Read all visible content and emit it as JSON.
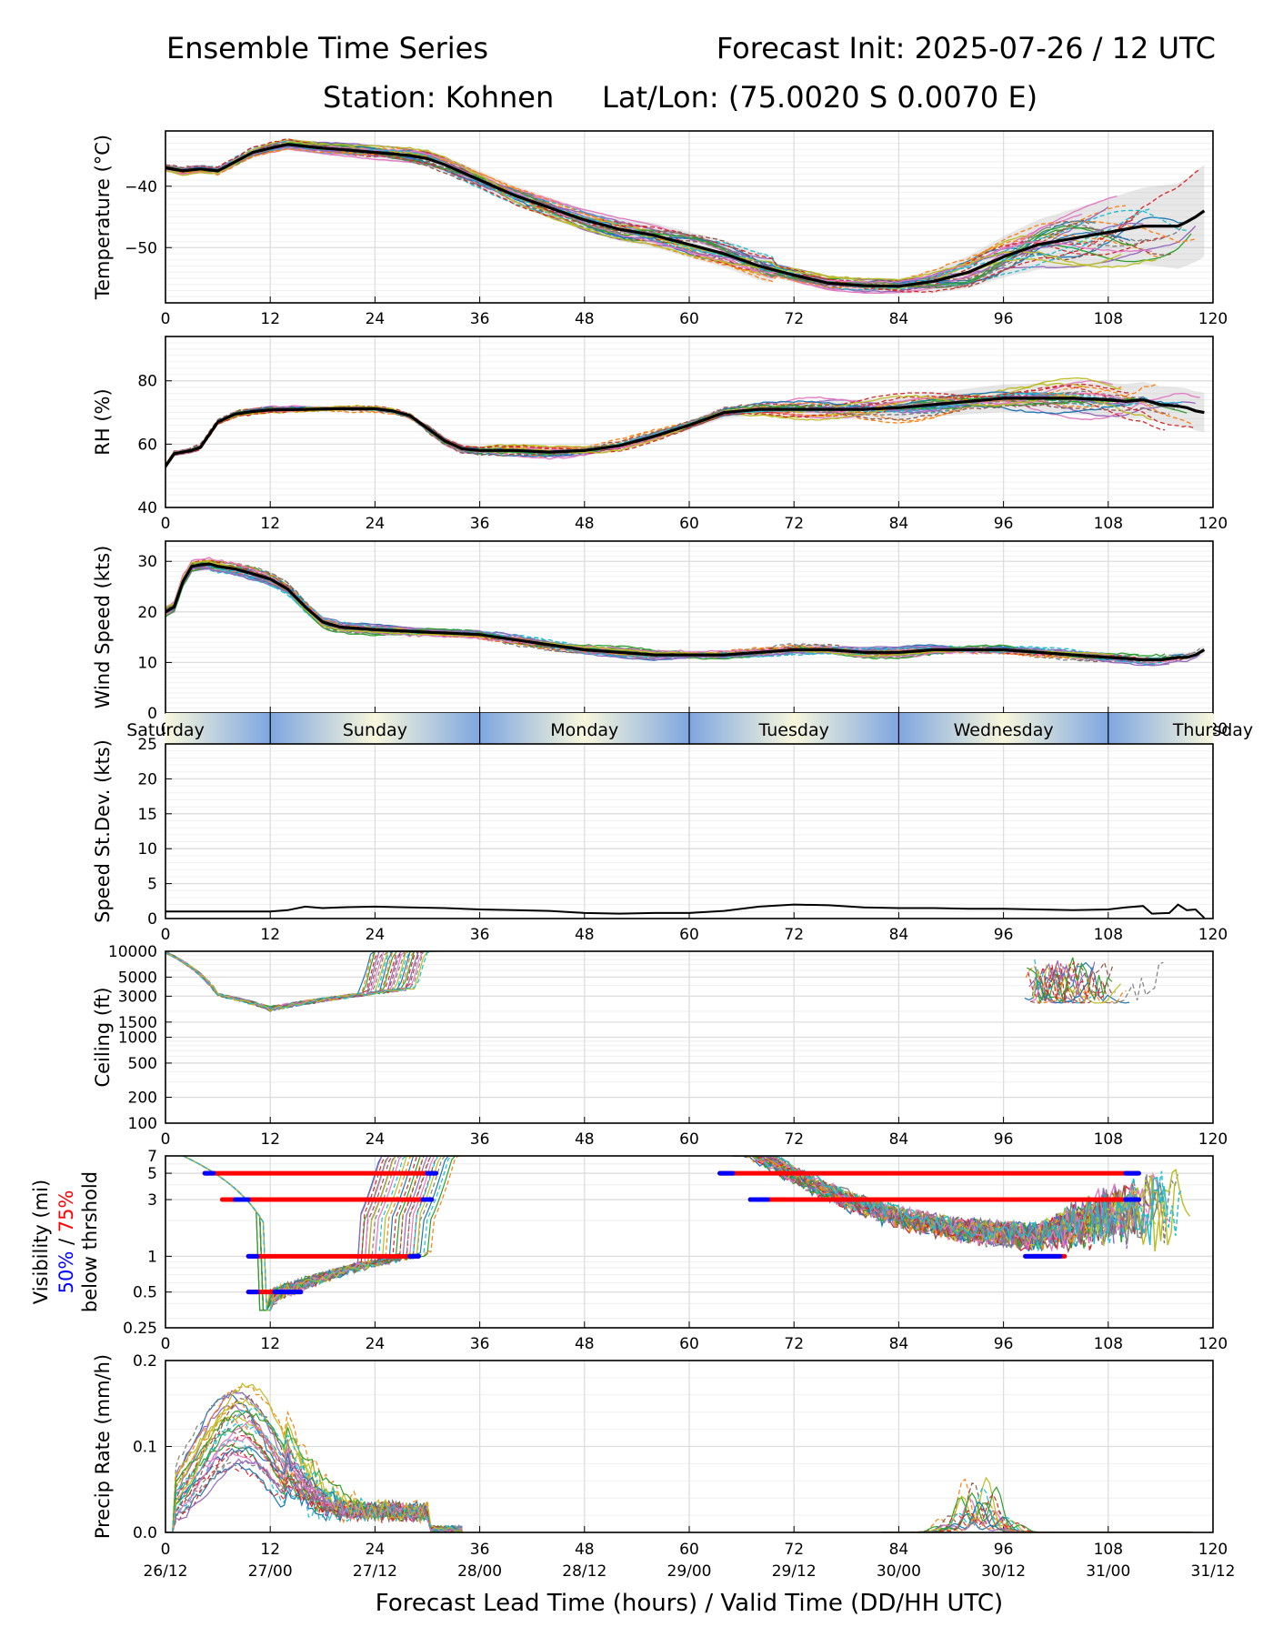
{
  "header": {
    "title_left": "Ensemble Time Series",
    "title_right": "Forecast Init: 2025-07-26 / 12 UTC",
    "station": "Station: Kohnen",
    "latlon": "Lat/Lon: (75.0020 S 0.0070 E)"
  },
  "xaxis": {
    "label": "Forecast Lead Time (hours) / Valid Time (DD/HH UTC)",
    "range": [
      0,
      120
    ],
    "ticks": [
      0,
      12,
      24,
      36,
      48,
      60,
      72,
      84,
      96,
      108,
      120
    ],
    "valid_labels": [
      "26/12",
      "27/00",
      "27/12",
      "28/00",
      "28/12",
      "29/00",
      "29/12",
      "30/00",
      "30/12",
      "31/00",
      "31/12"
    ]
  },
  "day_band": {
    "days": [
      "Saturday",
      "Sunday",
      "Monday",
      "Tuesday",
      "Wednesday",
      "Thursday"
    ],
    "boundaries": [
      12,
      36,
      60,
      84,
      108
    ]
  },
  "colors": {
    "members": [
      "#1f77b4",
      "#ff7f0e",
      "#2ca02c",
      "#d62728",
      "#9467bd",
      "#8c564b",
      "#e377c2",
      "#7f7f7f",
      "#bcbd22",
      "#17becf"
    ],
    "mean": "#000000",
    "spread": "#bbbbbb",
    "band_blue": "#7ea6e0",
    "band_cream": "#f8f7dc",
    "thr50": "#0000ff",
    "thr75": "#ff0000"
  },
  "chart_data": [
    {
      "id": "temperature",
      "type": "line",
      "ylabel": "Temperature (°C)",
      "ylim": [
        -59,
        -31
      ],
      "yticks": [
        -50,
        -40
      ],
      "ytick_labels": [
        "−50",
        "−40"
      ],
      "grid": true,
      "series": [
        {
          "role": "ensemble-mean",
          "x": [
            0,
            2,
            4,
            6,
            8,
            10,
            12,
            14,
            16,
            18,
            20,
            24,
            28,
            30,
            32,
            36,
            40,
            44,
            48,
            52,
            56,
            60,
            64,
            68,
            72,
            76,
            80,
            84,
            88,
            92,
            96,
            100,
            104,
            108,
            110,
            112,
            114,
            116,
            117,
            118,
            119
          ],
          "y": [
            -37,
            -37.5,
            -37.2,
            -37.5,
            -36,
            -34.5,
            -33.8,
            -33.2,
            -33.5,
            -33.8,
            -34,
            -34.5,
            -35,
            -35.5,
            -36.5,
            -39,
            -41.5,
            -43.5,
            -45.5,
            -47,
            -48,
            -49.5,
            -51,
            -53,
            -54.5,
            -55.8,
            -56.2,
            -56.3,
            -55.5,
            -54,
            -51.5,
            -49.5,
            -48.5,
            -47.5,
            -47,
            -46.5,
            -46.5,
            -46.5,
            -45.8,
            -45,
            -44
          ]
        }
      ]
    },
    {
      "id": "rh",
      "type": "line",
      "ylabel": "RH (%)",
      "ylim": [
        40,
        94
      ],
      "yticks": [
        40,
        60,
        80
      ],
      "ytick_labels": [
        "40",
        "60",
        "80"
      ],
      "grid": true,
      "series": [
        {
          "role": "ensemble-mean",
          "x": [
            0,
            1,
            2,
            3,
            4,
            5,
            6,
            8,
            10,
            12,
            16,
            20,
            24,
            26,
            28,
            30,
            32,
            34,
            36,
            40,
            44,
            48,
            52,
            56,
            60,
            64,
            68,
            72,
            76,
            80,
            84,
            88,
            92,
            96,
            100,
            104,
            108,
            110,
            112,
            114,
            116,
            117,
            118,
            119
          ],
          "y": [
            53,
            57,
            57.5,
            58,
            59,
            63,
            67,
            69.5,
            70.3,
            70.8,
            71,
            71.2,
            71.2,
            70.5,
            69,
            65,
            61,
            58.5,
            58,
            58,
            57.5,
            58,
            59.5,
            62.5,
            66,
            70,
            71,
            71,
            71,
            71,
            71.5,
            72.5,
            73.5,
            74.5,
            74.5,
            74.5,
            74,
            73.5,
            74,
            72.5,
            72,
            71.5,
            70.5,
            70
          ]
        }
      ]
    },
    {
      "id": "wind-speed",
      "type": "line",
      "ylabel": "Wind Speed (kts)",
      "ylim": [
        0,
        34
      ],
      "yticks": [
        0,
        10,
        20,
        30
      ],
      "ytick_labels": [
        "0",
        "10",
        "20",
        "30"
      ],
      "grid": true,
      "series": [
        {
          "role": "ensemble-mean",
          "x": [
            0,
            1,
            2,
            3,
            4,
            5,
            6,
            8,
            10,
            12,
            14,
            16,
            18,
            20,
            24,
            30,
            36,
            40,
            44,
            48,
            52,
            56,
            60,
            64,
            68,
            72,
            76,
            80,
            84,
            88,
            92,
            96,
            100,
            104,
            108,
            110,
            112,
            114,
            116,
            117,
            118,
            119
          ],
          "y": [
            20,
            21,
            26,
            29,
            29.3,
            29.5,
            29,
            28.5,
            27.5,
            26.5,
            24.5,
            21,
            18,
            17,
            16.5,
            16,
            15.5,
            14.5,
            13.5,
            12.5,
            12,
            11.5,
            11.5,
            11.5,
            12,
            12.5,
            12.5,
            12,
            12,
            12.5,
            12.5,
            12.5,
            12,
            11.5,
            11,
            10.8,
            10.5,
            10.5,
            11,
            11,
            11.5,
            12.5
          ]
        }
      ]
    },
    {
      "id": "speed-stdev",
      "type": "line",
      "ylabel": "Speed St.Dev. (kts)",
      "ylim": [
        0,
        25
      ],
      "yticks": [
        0,
        5,
        10,
        15,
        20,
        25
      ],
      "ytick_labels": [
        "0",
        "5",
        "10",
        "15",
        "20",
        "25"
      ],
      "grid": true,
      "series": [
        {
          "role": "stdev",
          "x": [
            0,
            2,
            4,
            6,
            8,
            10,
            12,
            14,
            16,
            18,
            20,
            24,
            28,
            32,
            36,
            40,
            44,
            48,
            52,
            56,
            60,
            64,
            68,
            72,
            76,
            80,
            84,
            88,
            92,
            96,
            100,
            104,
            108,
            110,
            112,
            113,
            115,
            116,
            117,
            118,
            119
          ],
          "y": [
            1,
            1,
            1,
            1,
            1,
            1,
            1,
            1.2,
            1.7,
            1.5,
            1.6,
            1.7,
            1.6,
            1.5,
            1.3,
            1.2,
            1.1,
            0.8,
            0.7,
            0.8,
            0.8,
            1.1,
            1.7,
            2,
            1.9,
            1.6,
            1.5,
            1.5,
            1.4,
            1.4,
            1.3,
            1.2,
            1.3,
            1.6,
            1.8,
            0.7,
            0.8,
            2,
            1.2,
            1.3,
            0.1
          ]
        }
      ]
    },
    {
      "id": "ceiling",
      "type": "line",
      "ylabel": "Ceiling (ft)",
      "scale": "log",
      "ylim": [
        100,
        10000
      ],
      "yticks": [
        100,
        200,
        500,
        1000,
        1500,
        3000,
        5000,
        10000
      ],
      "ytick_labels": [
        "100",
        "200",
        "500",
        "1000",
        "1500",
        "3000",
        "5000",
        "10000"
      ],
      "grid": true,
      "series": []
    },
    {
      "id": "visibility",
      "type": "line",
      "ylabel": "Visibility (mi)",
      "ylabel_50": "50%",
      "ylabel_sep": " / ",
      "ylabel_75": "75%",
      "ylabel_sub": "below thrshold",
      "scale": "log",
      "ylim": [
        0.25,
        7
      ],
      "yticks": [
        0.25,
        0.5,
        1,
        3,
        5,
        7
      ],
      "ytick_labels": [
        "0.25",
        "0.5",
        "1",
        "3",
        "5",
        "7"
      ],
      "grid": true,
      "thresholds": [
        {
          "level": 5,
          "p75": [
            [
              4.5,
              31.0
            ],
            [
              63.5,
              111.5
            ]
          ],
          "p50": [
            [
              4.5,
              5.5
            ],
            [
              30.0,
              31.0
            ],
            [
              63.5,
              65.0
            ],
            [
              110.0,
              111.5
            ]
          ]
        },
        {
          "level": 3,
          "p75": [
            [
              6.5,
              30.5
            ],
            [
              67.0,
              111.5
            ]
          ],
          "p50": [
            [
              8.0,
              9.5
            ],
            [
              29.5,
              30.5
            ],
            [
              67.0,
              69.0
            ],
            [
              110.0,
              111.5
            ]
          ]
        },
        {
          "level": 1,
          "p75": [
            [
              9.5,
              29.0
            ],
            [
              98.5,
              103.0
            ]
          ],
          "p50": [
            [
              9.5,
              10.5
            ],
            [
              28.0,
              29.0
            ],
            [
              98.5,
              102.5
            ]
          ]
        },
        {
          "level": 0.5,
          "p75": [
            [
              9.5,
              15.5
            ]
          ],
          "p50": [
            [
              9.5,
              10.5
            ],
            [
              12.5,
              15.5
            ]
          ]
        }
      ],
      "series": []
    },
    {
      "id": "precip-rate",
      "type": "line",
      "ylabel": "Precip Rate (mm/h)",
      "ylim": [
        0,
        0.2
      ],
      "yticks": [
        0,
        0.1,
        0.2
      ],
      "ytick_labels": [
        "0.0",
        "0.1",
        "0.2"
      ],
      "grid": true,
      "series": []
    }
  ]
}
